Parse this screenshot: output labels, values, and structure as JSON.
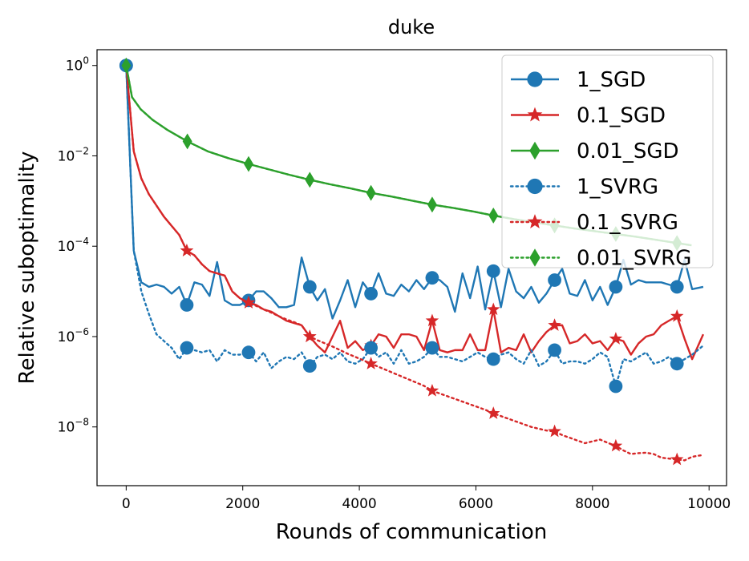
{
  "chart_data": {
    "type": "line",
    "title": "duke",
    "xlabel": "Rounds of communication",
    "ylabel": "Relative suboptimality",
    "yscale": "log",
    "xlim": [
      -500,
      10300
    ],
    "ylim_exp": [
      -9.3,
      0.35
    ],
    "x_ticks": [
      0,
      2000,
      4000,
      6000,
      8000,
      10000
    ],
    "x_tick_labels": [
      "0",
      "2000",
      "4000",
      "6000",
      "8000",
      "10000"
    ],
    "y_ticks_exp": [
      0,
      -2,
      -4,
      -6,
      -8
    ],
    "y_tick_labels": [
      {
        "base": "10",
        "exp": "0"
      },
      {
        "base": "10",
        "exp": "−2"
      },
      {
        "base": "10",
        "exp": "−4"
      },
      {
        "base": "10",
        "exp": "−6"
      },
      {
        "base": "10",
        "exp": "−8"
      }
    ],
    "legend_position": "top-right",
    "series": [
      {
        "name": "1_SGD",
        "color": "#1f77b4",
        "linestyle": "solid",
        "marker": "circle",
        "x": [
          0,
          130,
          260,
          390,
          520,
          650,
          780,
          910,
          1040,
          1170,
          1300,
          1430,
          1560,
          1690,
          1820,
          1950,
          2100,
          2230,
          2360,
          2490,
          2620,
          2750,
          2880,
          3010,
          3150,
          3280,
          3410,
          3540,
          3670,
          3800,
          3930,
          4060,
          4200,
          4330,
          4460,
          4590,
          4720,
          4850,
          4980,
          5110,
          5250,
          5380,
          5510,
          5640,
          5770,
          5900,
          6030,
          6160,
          6300,
          6430,
          6560,
          6690,
          6820,
          6950,
          7080,
          7210,
          7350,
          7480,
          7610,
          7740,
          7870,
          8000,
          8130,
          8260,
          8400,
          8530,
          8660,
          8790,
          8920,
          9050,
          9180,
          9310,
          9450,
          9580,
          9710,
          9900
        ],
        "y_exp": [
          0,
          -4.1,
          -4.8,
          -4.9,
          -4.85,
          -4.9,
          -5.05,
          -4.9,
          -5.3,
          -4.8,
          -4.85,
          -5.1,
          -4.35,
          -5.2,
          -5.3,
          -5.3,
          -5.2,
          -5.0,
          -5.0,
          -5.15,
          -5.35,
          -5.35,
          -5.3,
          -4.25,
          -4.9,
          -5.2,
          -4.95,
          -5.6,
          -5.2,
          -4.75,
          -5.35,
          -4.8,
          -5.05,
          -4.6,
          -5.05,
          -5.1,
          -4.85,
          -5.0,
          -4.75,
          -4.95,
          -4.7,
          -4.75,
          -4.9,
          -5.45,
          -4.6,
          -5.15,
          -4.45,
          -5.4,
          -4.55,
          -5.35,
          -4.5,
          -5.0,
          -5.15,
          -4.9,
          -5.25,
          -5.05,
          -4.75,
          -4.5,
          -5.05,
          -5.1,
          -4.75,
          -5.2,
          -4.9,
          -5.3,
          -4.9,
          -4.3,
          -4.85,
          -4.75,
          -4.8,
          -4.8,
          -4.8,
          -4.85,
          -4.9,
          -4.3,
          -4.95,
          -4.9
        ],
        "markers_at": [
          0,
          8,
          16,
          24,
          32,
          40,
          48,
          56,
          64,
          72
        ]
      },
      {
        "name": "0.1_SGD",
        "color": "#d62728",
        "linestyle": "solid",
        "marker": "star",
        "x": [
          0,
          130,
          260,
          390,
          520,
          650,
          780,
          910,
          1040,
          1170,
          1300,
          1430,
          1560,
          1690,
          1820,
          1950,
          2100,
          2230,
          2360,
          2490,
          2620,
          2750,
          2880,
          3010,
          3150,
          3280,
          3410,
          3540,
          3670,
          3800,
          3930,
          4060,
          4200,
          4330,
          4460,
          4590,
          4720,
          4850,
          4980,
          5110,
          5250,
          5380,
          5510,
          5640,
          5770,
          5900,
          6030,
          6160,
          6300,
          6430,
          6560,
          6690,
          6820,
          6950,
          7080,
          7210,
          7350,
          7480,
          7610,
          7740,
          7870,
          8000,
          8130,
          8260,
          8400,
          8530,
          8660,
          8790,
          8920,
          9050,
          9180,
          9310,
          9450,
          9580,
          9710,
          9900
        ],
        "y_exp": [
          0,
          -1.9,
          -2.5,
          -2.85,
          -3.1,
          -3.35,
          -3.55,
          -3.75,
          -4.1,
          -4.2,
          -4.4,
          -4.55,
          -4.6,
          -4.65,
          -5.0,
          -5.15,
          -5.25,
          -5.3,
          -5.4,
          -5.45,
          -5.55,
          -5.65,
          -5.7,
          -5.75,
          -6.0,
          -6.2,
          -6.35,
          -6.0,
          -5.65,
          -6.25,
          -6.1,
          -6.3,
          -6.2,
          -5.95,
          -6.0,
          -6.25,
          -5.95,
          -5.95,
          -6.0,
          -6.3,
          -5.65,
          -6.3,
          -6.35,
          -6.3,
          -6.3,
          -5.95,
          -6.3,
          -6.3,
          -5.4,
          -6.35,
          -6.25,
          -6.3,
          -5.95,
          -6.35,
          -6.1,
          -5.9,
          -5.75,
          -5.75,
          -6.15,
          -6.1,
          -5.95,
          -6.15,
          -6.1,
          -6.3,
          -6.05,
          -6.1,
          -6.4,
          -6.15,
          -6.0,
          -5.95,
          -5.75,
          -5.65,
          -5.55,
          -6.05,
          -6.5,
          -5.95
        ],
        "markers_at": [
          0,
          8,
          16,
          24,
          32,
          40,
          48,
          56,
          64,
          72
        ]
      },
      {
        "name": "0.01_SGD",
        "color": "#2ca02c",
        "linestyle": "solid",
        "marker": "diamond",
        "x": [
          0,
          100,
          250,
          450,
          700,
          1050,
          1400,
          1750,
          2100,
          2450,
          2800,
          3150,
          3500,
          3850,
          4200,
          4550,
          4900,
          5250,
          5600,
          5950,
          6300,
          6650,
          7000,
          7350,
          7700,
          8050,
          8400,
          8750,
          9100,
          9450,
          9700
        ],
        "y_exp": [
          0,
          -0.7,
          -0.97,
          -1.2,
          -1.42,
          -1.68,
          -1.9,
          -2.05,
          -2.18,
          -2.3,
          -2.42,
          -2.53,
          -2.63,
          -2.72,
          -2.82,
          -2.9,
          -2.99,
          -3.08,
          -3.15,
          -3.23,
          -3.32,
          -3.4,
          -3.47,
          -3.54,
          -3.61,
          -3.67,
          -3.73,
          -3.79,
          -3.86,
          -3.93,
          -3.98
        ],
        "markers_at": [
          0,
          5,
          8,
          11,
          14,
          17,
          20,
          23,
          26,
          29
        ]
      },
      {
        "name": "1_SVRG",
        "color": "#1f77b4",
        "linestyle": "dotted",
        "marker": "circle",
        "x": [
          0,
          130,
          260,
          390,
          520,
          650,
          780,
          910,
          1040,
          1170,
          1300,
          1430,
          1560,
          1690,
          1820,
          1950,
          2100,
          2230,
          2360,
          2490,
          2620,
          2750,
          2880,
          3010,
          3150,
          3280,
          3410,
          3540,
          3670,
          3800,
          3930,
          4060,
          4200,
          4330,
          4460,
          4590,
          4720,
          4850,
          4980,
          5110,
          5250,
          5380,
          5510,
          5640,
          5770,
          5900,
          6030,
          6160,
          6300,
          6430,
          6560,
          6690,
          6820,
          6950,
          7080,
          7210,
          7350,
          7480,
          7610,
          7740,
          7870,
          8000,
          8130,
          8260,
          8400,
          8530,
          8660,
          8790,
          8920,
          9050,
          9180,
          9310,
          9450,
          9580,
          9710,
          9900
        ],
        "y_exp": [
          0,
          -4.1,
          -5.0,
          -5.5,
          -5.95,
          -6.1,
          -6.25,
          -6.5,
          -6.25,
          -6.3,
          -6.35,
          -6.3,
          -6.55,
          -6.3,
          -6.4,
          -6.4,
          -6.35,
          -6.55,
          -6.35,
          -6.7,
          -6.55,
          -6.45,
          -6.5,
          -6.35,
          -6.65,
          -6.45,
          -6.4,
          -6.5,
          -6.35,
          -6.55,
          -6.6,
          -6.5,
          -6.25,
          -6.45,
          -6.35,
          -6.6,
          -6.3,
          -6.6,
          -6.55,
          -6.45,
          -6.25,
          -6.45,
          -6.45,
          -6.5,
          -6.55,
          -6.45,
          -6.35,
          -6.45,
          -6.5,
          -6.4,
          -6.35,
          -6.5,
          -6.6,
          -6.3,
          -6.65,
          -6.55,
          -6.3,
          -6.6,
          -6.55,
          -6.55,
          -6.6,
          -6.5,
          -6.35,
          -6.45,
          -7.1,
          -6.5,
          -6.55,
          -6.45,
          -6.35,
          -6.6,
          -6.55,
          -6.45,
          -6.6,
          -6.5,
          -6.4,
          -6.2
        ],
        "markers_at": [
          0,
          8,
          16,
          24,
          32,
          40,
          48,
          56,
          64,
          72
        ]
      },
      {
        "name": "0.1_SVRG",
        "color": "#d62728",
        "linestyle": "dotted",
        "marker": "star",
        "x": [
          0,
          130,
          260,
          390,
          520,
          650,
          780,
          910,
          1040,
          1170,
          1300,
          1430,
          1560,
          1690,
          1820,
          1950,
          2100,
          2230,
          2360,
          2490,
          2620,
          2750,
          2880,
          3010,
          3150,
          3280,
          3410,
          3540,
          3670,
          3800,
          3930,
          4060,
          4200,
          4330,
          4460,
          4590,
          4720,
          4850,
          4980,
          5110,
          5250,
          5380,
          5510,
          5640,
          5770,
          5900,
          6030,
          6160,
          6300,
          6430,
          6560,
          6690,
          6820,
          6950,
          7080,
          7210,
          7350,
          7480,
          7610,
          7740,
          7870,
          8000,
          8130,
          8260,
          8400,
          8530,
          8660,
          8790,
          8920,
          9050,
          9180,
          9310,
          9450,
          9580,
          9710,
          9900
        ],
        "y_exp": [
          0,
          -1.9,
          -2.5,
          -2.85,
          -3.1,
          -3.35,
          -3.55,
          -3.75,
          -4.1,
          -4.2,
          -4.4,
          -4.55,
          -4.6,
          -4.65,
          -5.0,
          -5.15,
          -5.25,
          -5.32,
          -5.4,
          -5.47,
          -5.55,
          -5.62,
          -5.68,
          -5.75,
          -6.0,
          -6.08,
          -6.15,
          -6.22,
          -6.3,
          -6.38,
          -6.45,
          -6.52,
          -6.6,
          -6.67,
          -6.74,
          -6.81,
          -6.88,
          -6.95,
          -7.02,
          -7.09,
          -7.2,
          -7.26,
          -7.32,
          -7.38,
          -7.44,
          -7.5,
          -7.56,
          -7.62,
          -7.7,
          -7.76,
          -7.82,
          -7.88,
          -7.94,
          -8.0,
          -8.04,
          -8.08,
          -8.1,
          -8.18,
          -8.24,
          -8.3,
          -8.36,
          -8.32,
          -8.28,
          -8.35,
          -8.42,
          -8.52,
          -8.6,
          -8.58,
          -8.57,
          -8.6,
          -8.68,
          -8.7,
          -8.72,
          -8.74,
          -8.66,
          -8.62
        ],
        "markers_at": [
          8,
          16,
          24,
          32,
          40,
          48,
          56,
          64,
          72
        ]
      },
      {
        "name": "0.01_SVRG",
        "color": "#2ca02c",
        "linestyle": "dotted",
        "marker": "diamond",
        "x": [
          0,
          100,
          250,
          450,
          700,
          1050,
          1400,
          1750,
          2100,
          2450,
          2800,
          3150,
          3500,
          3850,
          4200,
          4550,
          4900,
          5250,
          5600,
          5950,
          6300,
          6650,
          7000,
          7350,
          7700,
          8050,
          8400,
          8750,
          9100,
          9450,
          9700
        ],
        "y_exp": [
          0,
          -0.7,
          -0.97,
          -1.2,
          -1.42,
          -1.68,
          -1.9,
          -2.05,
          -2.18,
          -2.3,
          -2.42,
          -2.53,
          -2.63,
          -2.72,
          -2.82,
          -2.9,
          -2.99,
          -3.08,
          -3.15,
          -3.23,
          -3.32,
          -3.4,
          -3.47,
          -3.54,
          -3.61,
          -3.67,
          -3.73,
          -3.79,
          -3.86,
          -3.93,
          -3.98
        ],
        "markers_at": [
          0,
          5,
          8,
          11,
          14,
          17,
          20,
          23,
          26,
          29
        ]
      }
    ]
  }
}
